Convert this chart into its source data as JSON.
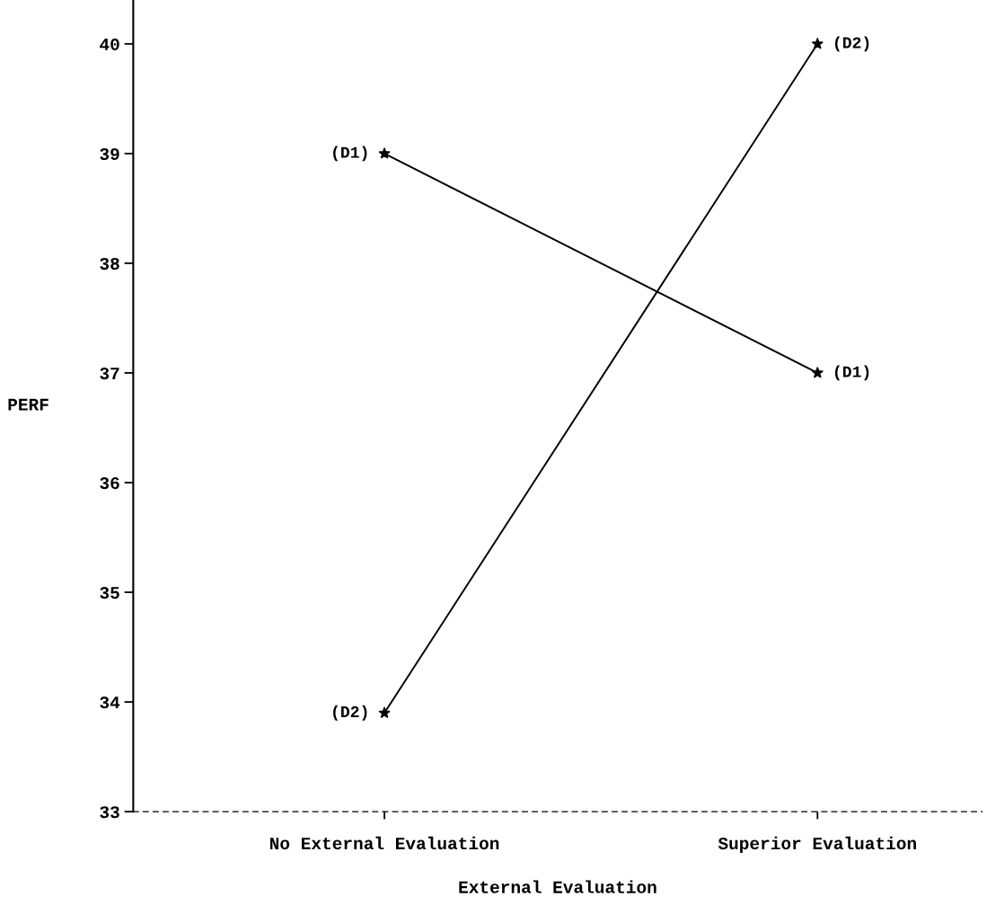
{
  "chart_data": {
    "type": "line",
    "xlabel": "External Evaluation",
    "ylabel": "PERF",
    "categories": [
      "No External Evaluation",
      "Superior Evaluation"
    ],
    "series": [
      {
        "name": "(D1)",
        "color": "#000000",
        "values": [
          39.0,
          37.0
        ]
      },
      {
        "name": "(D2)",
        "color": "#000000",
        "values": [
          33.9,
          40.0
        ]
      }
    ],
    "ylim": [
      33,
      40.4
    ],
    "yticks": [
      33,
      34,
      35,
      36,
      37,
      38,
      39,
      40
    ],
    "marker": "star",
    "line_style": "solid",
    "grid": false,
    "legend": false
  }
}
